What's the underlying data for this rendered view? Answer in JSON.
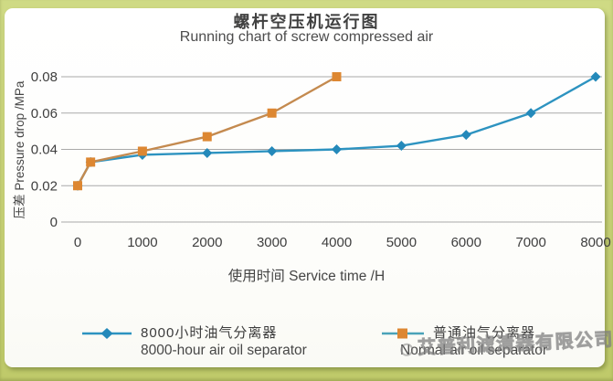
{
  "frame": {
    "border_color": "#c9d378",
    "panel_color": "#fdfdfb"
  },
  "header": {
    "title_cn": "螺杆空压机运行图",
    "title_en": "Running chart of screw compressed air"
  },
  "watermark": {
    "text": "艾普利滤清器有限公司"
  },
  "chart_data": {
    "type": "line",
    "title": "螺杆空压机运行图 / Running chart of screw compressed air",
    "xlabel": "使用时间 Service time /H",
    "ylabel": "压差 Pressure drop /MPa",
    "xlim": [
      0,
      8000
    ],
    "ylim": [
      0,
      0.08
    ],
    "x_ticks": [
      0,
      1000,
      2000,
      3000,
      4000,
      5000,
      6000,
      7000,
      8000
    ],
    "y_ticks": {
      "values": [
        0,
        0.02,
        0.04,
        0.06,
        0.08
      ],
      "labels": [
        "0",
        "0.02",
        "0.04",
        "0.06",
        "0.08"
      ]
    },
    "grid": "horizontal",
    "gridline_color": "#a9a9a9",
    "tick_label_color": "#3e3e3e",
    "legend_position": "bottom",
    "series": [
      {
        "name_cn": "8000小时油气分离器",
        "name_en": "8000-hour air oil separator",
        "color": "#2489ba",
        "line_color": "#2d93c0",
        "marker": "diamond",
        "x": [
          0,
          200,
          1000,
          2000,
          3000,
          4000,
          5000,
          6000,
          7000,
          8000
        ],
        "y": [
          0.02,
          0.033,
          0.037,
          0.038,
          0.039,
          0.04,
          0.042,
          0.048,
          0.06,
          0.08
        ]
      },
      {
        "name_cn": "普通油气分离器",
        "name_en": "Normal air oil separator",
        "color": "#dd8732",
        "line_color": "#c48a4f",
        "legend_line_color": "#4aa3b8",
        "marker": "square",
        "x": [
          0,
          200,
          1000,
          2000,
          3000,
          4000
        ],
        "y": [
          0.02,
          0.033,
          0.039,
          0.047,
          0.06,
          0.08
        ]
      }
    ]
  }
}
